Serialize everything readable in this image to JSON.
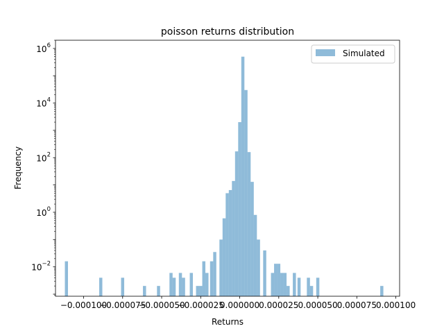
{
  "chart_data": {
    "type": "bar",
    "title": "poisson returns distribution",
    "xlabel": "Returns",
    "ylabel": "Frequency",
    "yscale": "log",
    "xlim": [
      -0.000118,
      0.0001024
    ],
    "ylim": [
      0.00084,
      2000000
    ],
    "grid": false,
    "legend_position": "top-right",
    "bar_width": 2e-06,
    "bar_color": "#1f77b4",
    "bar_opacity": 0.5,
    "x_ticks": [
      {
        "value": -0.0001,
        "label": "−0.000100"
      },
      {
        "value": -7.5e-05,
        "label": "−0.000075"
      },
      {
        "value": -5e-05,
        "label": "−0.000050"
      },
      {
        "value": -2.5e-05,
        "label": "−0.000025"
      },
      {
        "value": 0.0,
        "label": "0.000000"
      },
      {
        "value": 2.5e-05,
        "label": "0.000025"
      },
      {
        "value": 5e-05,
        "label": "0.000050"
      },
      {
        "value": 7.5e-05,
        "label": "0.000075"
      },
      {
        "value": 0.0001,
        "label": "0.000100"
      }
    ],
    "y_ticks": [
      {
        "exp": -2,
        "base": "10",
        "sup": "−2"
      },
      {
        "exp": 0,
        "base": "10",
        "sup": "0"
      },
      {
        "exp": 2,
        "base": "10",
        "sup": "2"
      },
      {
        "exp": 4,
        "base": "10",
        "sup": "4"
      },
      {
        "exp": 6,
        "base": "10",
        "sup": "6"
      }
    ],
    "series": [
      {
        "name": "Simulated",
        "bins": [
          {
            "x": -0.000111,
            "y": 0.016
          },
          {
            "x": -8.9e-05,
            "y": 0.004
          },
          {
            "x": -7.5e-05,
            "y": 0.004
          },
          {
            "x": -6.1e-05,
            "y": 0.002
          },
          {
            "x": -5.2e-05,
            "y": 0.002
          },
          {
            "x": -4.4e-05,
            "y": 0.006
          },
          {
            "x": -4.2e-05,
            "y": 0.004
          },
          {
            "x": -3.8e-05,
            "y": 0.006
          },
          {
            "x": -3.6e-05,
            "y": 0.004
          },
          {
            "x": -3.1e-05,
            "y": 0.006
          },
          {
            "x": -2.7e-05,
            "y": 0.002
          },
          {
            "x": -2.5e-05,
            "y": 0.002
          },
          {
            "x": -2.3e-05,
            "y": 0.016
          },
          {
            "x": -2.1e-05,
            "y": 0.006
          },
          {
            "x": -1.8e-05,
            "y": 0.016
          },
          {
            "x": -1.6e-05,
            "y": 0.035
          },
          {
            "x": -1.2e-05,
            "y": 0.1
          },
          {
            "x": -1e-05,
            "y": 0.6
          },
          {
            "x": -8e-06,
            "y": 5
          },
          {
            "x": -6e-06,
            "y": 6.5
          },
          {
            "x": -4e-06,
            "y": 14
          },
          {
            "x": -2e-06,
            "y": 170
          },
          {
            "x": 0.0,
            "y": 2000
          },
          {
            "x": 2e-06,
            "y": 500000
          },
          {
            "x": 4e-06,
            "y": 30000
          },
          {
            "x": 6e-06,
            "y": 160
          },
          {
            "x": 8e-06,
            "y": 13
          },
          {
            "x": 1e-05,
            "y": 0.8
          },
          {
            "x": 1.2e-05,
            "y": 0.1
          },
          {
            "x": 1.6e-05,
            "y": 0.04
          },
          {
            "x": 2.1e-05,
            "y": 0.006
          },
          {
            "x": 2.3e-05,
            "y": 0.013
          },
          {
            "x": 2.5e-05,
            "y": 0.013
          },
          {
            "x": 2.7e-05,
            "y": 0.006
          },
          {
            "x": 2.9e-05,
            "y": 0.006
          },
          {
            "x": 3.1e-05,
            "y": 0.002
          },
          {
            "x": 3.5e-05,
            "y": 0.006
          },
          {
            "x": 3.8e-05,
            "y": 0.004
          },
          {
            "x": 4.4e-05,
            "y": 0.004
          },
          {
            "x": 4.6e-05,
            "y": 0.002
          },
          {
            "x": 5e-05,
            "y": 0.004
          },
          {
            "x": 9.1e-05,
            "y": 0.002
          }
        ]
      }
    ]
  }
}
